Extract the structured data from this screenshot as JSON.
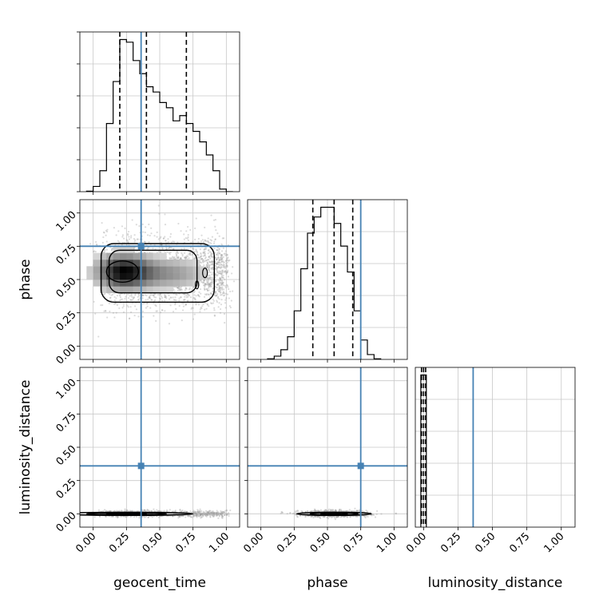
{
  "chart_data": {
    "type": "corner",
    "parameters": [
      "geocent_time",
      "phase",
      "luminosity_distance"
    ],
    "axis_labels": {
      "x": [
        "geocent_time",
        "phase",
        "luminosity_distance"
      ],
      "y": [
        "phase",
        "luminosity_distance"
      ]
    },
    "tick_values": [
      0.0,
      0.25,
      0.5,
      0.75,
      1.0
    ],
    "tick_labels": [
      "0.00",
      "0.25",
      "0.50",
      "0.75",
      "1.00"
    ],
    "xlims": [
      [
        -0.1,
        1.1
      ],
      [
        -0.1,
        1.1
      ],
      [
        -0.06,
        1.1
      ]
    ],
    "ylims": [
      [
        -0.1,
        1.1
      ],
      [
        -0.1,
        1.1
      ]
    ],
    "truths": {
      "geocent_time": 0.36,
      "phase": 0.75,
      "luminosity_distance": 0.36
    },
    "truth_color": "#4682b4",
    "grid": true,
    "histograms": [
      {
        "parameter": "geocent_time",
        "bin_edges": [
          -0.05,
          0.0,
          0.05,
          0.1,
          0.15,
          0.2,
          0.25,
          0.3,
          0.35,
          0.4,
          0.45,
          0.5,
          0.55,
          0.6,
          0.65,
          0.7,
          0.75,
          0.8,
          0.85,
          0.9,
          0.95,
          1.0,
          1.05
        ],
        "counts": [
          1,
          10,
          40,
          130,
          210,
          290,
          285,
          250,
          225,
          200,
          190,
          170,
          160,
          135,
          145,
          130,
          115,
          95,
          70,
          40,
          5,
          0
        ],
        "quantiles": [
          0.2,
          0.4,
          0.7
        ]
      },
      {
        "parameter": "phase",
        "bin_edges": [
          0.05,
          0.1,
          0.15,
          0.2,
          0.25,
          0.3,
          0.35,
          0.4,
          0.45,
          0.5,
          0.55,
          0.6,
          0.65,
          0.7,
          0.75,
          0.8,
          0.85,
          0.9
        ],
        "counts": [
          2,
          10,
          30,
          70,
          150,
          280,
          390,
          440,
          470,
          470,
          420,
          350,
          270,
          150,
          60,
          15,
          2
        ],
        "quantiles": [
          0.39,
          0.55,
          0.69
        ]
      },
      {
        "parameter": "luminosity_distance",
        "bin_edges": [
          -0.02,
          -0.01,
          0.0,
          0.01,
          0.02
        ],
        "counts": [
          1.0,
          1.0,
          1.0,
          1.0
        ],
        "quantiles": [
          -0.015,
          0.0,
          0.015
        ]
      }
    ],
    "pairs": [
      {
        "x": "geocent_time",
        "y": "phase",
        "density_peak": [
          0.22,
          0.56
        ],
        "contour_levels": 3
      },
      {
        "x": "geocent_time",
        "y": "luminosity_distance",
        "density_peak": [
          0.25,
          0.0
        ],
        "contour_levels": 3
      },
      {
        "x": "phase",
        "y": "luminosity_distance",
        "density_peak": [
          0.55,
          0.0
        ],
        "contour_levels": 3
      }
    ]
  }
}
